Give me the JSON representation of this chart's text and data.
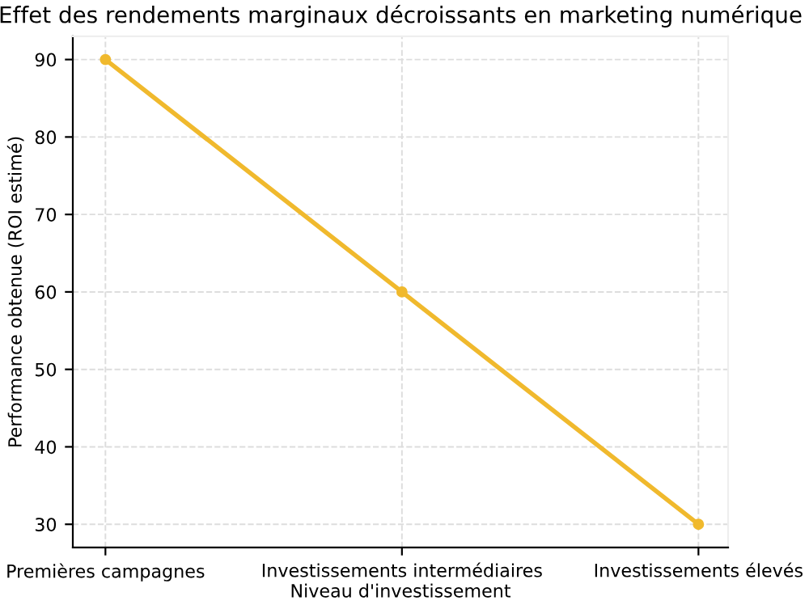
{
  "chart_data": {
    "type": "line",
    "title": "Effet des rendements marginaux décroissants en marketing numérique",
    "xlabel": "Niveau d'investissement",
    "ylabel": "Performance obtenue (ROI estimé)",
    "categories": [
      "Premières campagnes",
      "Investissements intermédiaires",
      "Investissements élevés"
    ],
    "series": [
      {
        "color": "#f0b92d",
        "values": [
          90,
          60,
          30
        ]
      }
    ],
    "ylim": [
      27,
      93
    ],
    "yticks": [
      30,
      40,
      50,
      60,
      70,
      80,
      90
    ],
    "grid": true,
    "marker": "circle",
    "line_style": "solid"
  }
}
